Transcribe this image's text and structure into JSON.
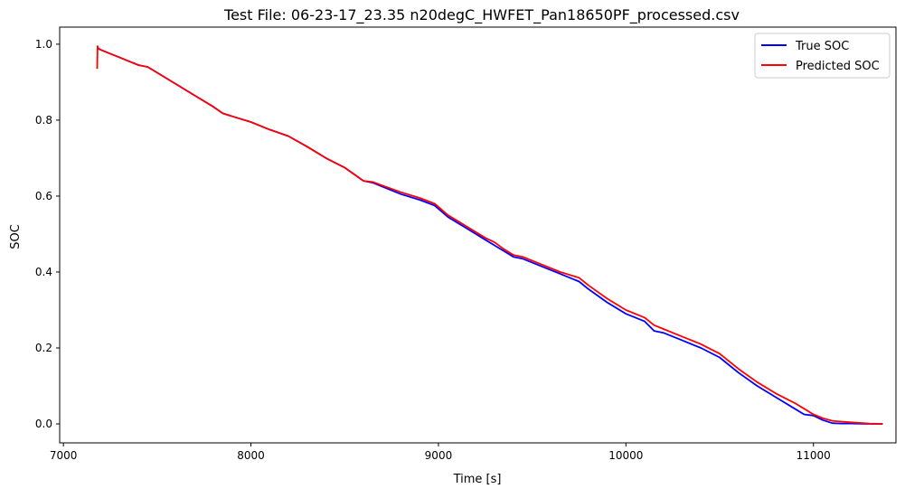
{
  "chart_data": {
    "type": "line",
    "title": "Test File: 06-23-17_23.35 n20degC_HWFET_Pan18650PF_processed.csv",
    "xlabel": "Time [s]",
    "ylabel": "SOC",
    "xlim": [
      6980,
      11440
    ],
    "ylim": [
      -0.05,
      1.045
    ],
    "xticks": [
      7000,
      8000,
      9000,
      10000,
      11000
    ],
    "yticks": [
      0.0,
      0.2,
      0.4,
      0.6,
      0.8,
      1.0
    ],
    "xtick_labels": [
      "7000",
      "8000",
      "9000",
      "10000",
      "11000"
    ],
    "ytick_labels": [
      "0.0",
      "0.2",
      "0.4",
      "0.6",
      "0.8",
      "1.0"
    ],
    "grid": false,
    "legend_position": "upper right",
    "series": [
      {
        "name": "True SOC",
        "color": "#0000ff",
        "x": [
          7180,
          7200,
          7250,
          7300,
          7350,
          7400,
          7450,
          7500,
          7600,
          7700,
          7800,
          7850,
          7900,
          8000,
          8100,
          8200,
          8300,
          8400,
          8500,
          8600,
          8650,
          8700,
          8800,
          8900,
          8980,
          9050,
          9150,
          9250,
          9300,
          9350,
          9400,
          9450,
          9550,
          9650,
          9750,
          9800,
          9900,
          10000,
          10100,
          10150,
          10200,
          10300,
          10400,
          10500,
          10600,
          10700,
          10800,
          10900,
          10950,
          11000,
          11050,
          11100,
          11150,
          11200,
          11300,
          11370
        ],
        "y": [
          0.99,
          0.985,
          0.975,
          0.965,
          0.955,
          0.945,
          0.94,
          0.925,
          0.895,
          0.865,
          0.835,
          0.818,
          0.81,
          0.795,
          0.775,
          0.758,
          0.73,
          0.7,
          0.675,
          0.64,
          0.635,
          0.625,
          0.605,
          0.59,
          0.575,
          0.545,
          0.515,
          0.485,
          0.47,
          0.455,
          0.44,
          0.435,
          0.415,
          0.395,
          0.375,
          0.355,
          0.32,
          0.29,
          0.27,
          0.245,
          0.24,
          0.22,
          0.2,
          0.175,
          0.135,
          0.1,
          0.07,
          0.04,
          0.025,
          0.022,
          0.01,
          0.002,
          0.001,
          0.001,
          0.0,
          0.0
        ]
      },
      {
        "name": "Predicted SOC",
        "color": "#ff0000",
        "x": [
          7180,
          7182,
          7184,
          7200,
          7250,
          7300,
          7350,
          7400,
          7450,
          7500,
          7600,
          7700,
          7800,
          7850,
          7900,
          8000,
          8100,
          8200,
          8300,
          8400,
          8500,
          8600,
          8650,
          8700,
          8800,
          8900,
          8980,
          9050,
          9150,
          9250,
          9300,
          9350,
          9400,
          9450,
          9550,
          9650,
          9750,
          9800,
          9900,
          10000,
          10100,
          10150,
          10200,
          10300,
          10400,
          10500,
          10600,
          10700,
          10800,
          10900,
          10950,
          11000,
          11050,
          11100,
          11150,
          11200,
          11300,
          11370
        ],
        "y": [
          0.935,
          0.995,
          0.99,
          0.985,
          0.975,
          0.965,
          0.955,
          0.945,
          0.94,
          0.925,
          0.895,
          0.865,
          0.835,
          0.818,
          0.81,
          0.795,
          0.775,
          0.758,
          0.73,
          0.7,
          0.675,
          0.64,
          0.637,
          0.628,
          0.61,
          0.595,
          0.58,
          0.55,
          0.52,
          0.49,
          0.478,
          0.46,
          0.445,
          0.44,
          0.42,
          0.4,
          0.385,
          0.365,
          0.33,
          0.3,
          0.28,
          0.26,
          0.25,
          0.23,
          0.21,
          0.185,
          0.145,
          0.11,
          0.08,
          0.055,
          0.04,
          0.025,
          0.015,
          0.008,
          0.006,
          0.004,
          0.001,
          0.0
        ]
      }
    ]
  }
}
